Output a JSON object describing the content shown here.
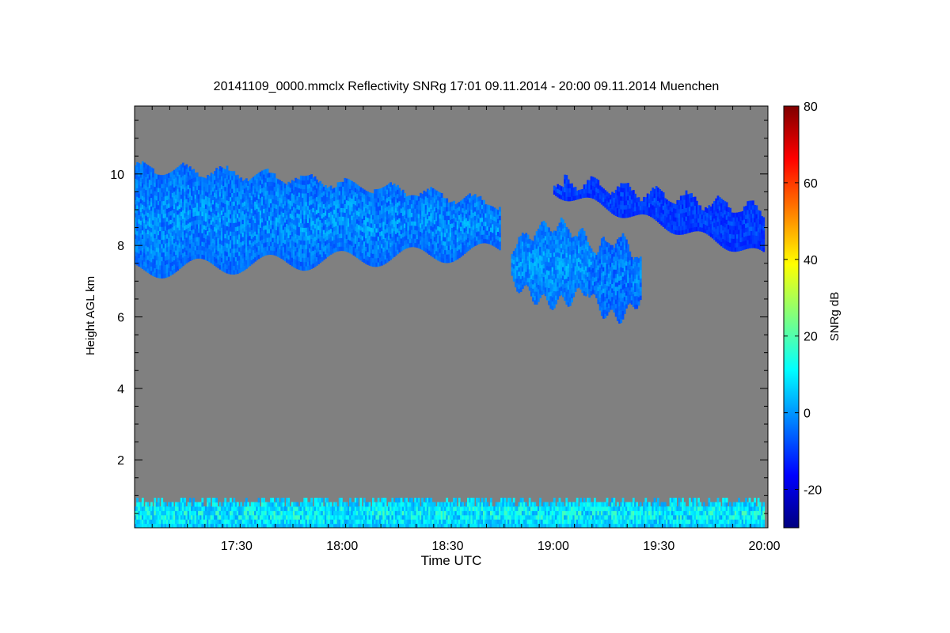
{
  "chart_data": {
    "type": "heatmap",
    "title": "20141109_0000.mmclx Reflectivity SNRg   17:01 09.11.2014 - 20:00 09.11.2014 Muenchen",
    "xlabel": "Time UTC",
    "ylabel": "Height AGL km",
    "colorbar_label": "SNRg dB",
    "x_ticks": [
      "17:30",
      "18:00",
      "18:30",
      "19:00",
      "19:30",
      "20:00"
    ],
    "x_tick_values_min": [
      1050,
      1080,
      1110,
      1140,
      1170,
      1200
    ],
    "xlim_min": [
      1021,
      1201
    ],
    "y_ticks": [
      2,
      4,
      6,
      8,
      10
    ],
    "ylim": [
      0.1,
      11.9
    ],
    "colorbar_ticks": [
      -20,
      0,
      20,
      40,
      60,
      80
    ],
    "colorbar_range": [
      -30,
      80
    ],
    "background_color": "#808080",
    "colormap": [
      "#00007f",
      "#0000ff",
      "#007fff",
      "#00ffff",
      "#7fff7f",
      "#ffff00",
      "#ff7f00",
      "#ff0000",
      "#7f0000"
    ],
    "features": [
      {
        "feature": "upper cloud layer",
        "time_start": "17:01",
        "time_end": "18:45",
        "base_km": 7.3,
        "top_km": 10.1,
        "snr_db": [
          -15,
          5
        ]
      },
      {
        "feature": "cloud patch",
        "time_start": "18:48",
        "time_end": "19:12",
        "base_km": 6.4,
        "top_km": 8.5,
        "snr_db": [
          -12,
          5
        ]
      },
      {
        "feature": "cloud patch",
        "time_start": "19:10",
        "time_end": "19:25",
        "base_km": 6.0,
        "top_km": 8.1,
        "snr_db": [
          -15,
          3
        ]
      },
      {
        "feature": "sloping upper layer",
        "time_start": "19:00",
        "time_end": "20:00",
        "base_km": 7.6,
        "top_km": 10.1,
        "snr_db": [
          -18,
          -5
        ]
      },
      {
        "feature": "near-surface clutter",
        "time_start": "17:01",
        "time_end": "20:00",
        "base_km": 0.1,
        "top_km": 0.9,
        "snr_db": [
          -10,
          20
        ]
      }
    ]
  }
}
